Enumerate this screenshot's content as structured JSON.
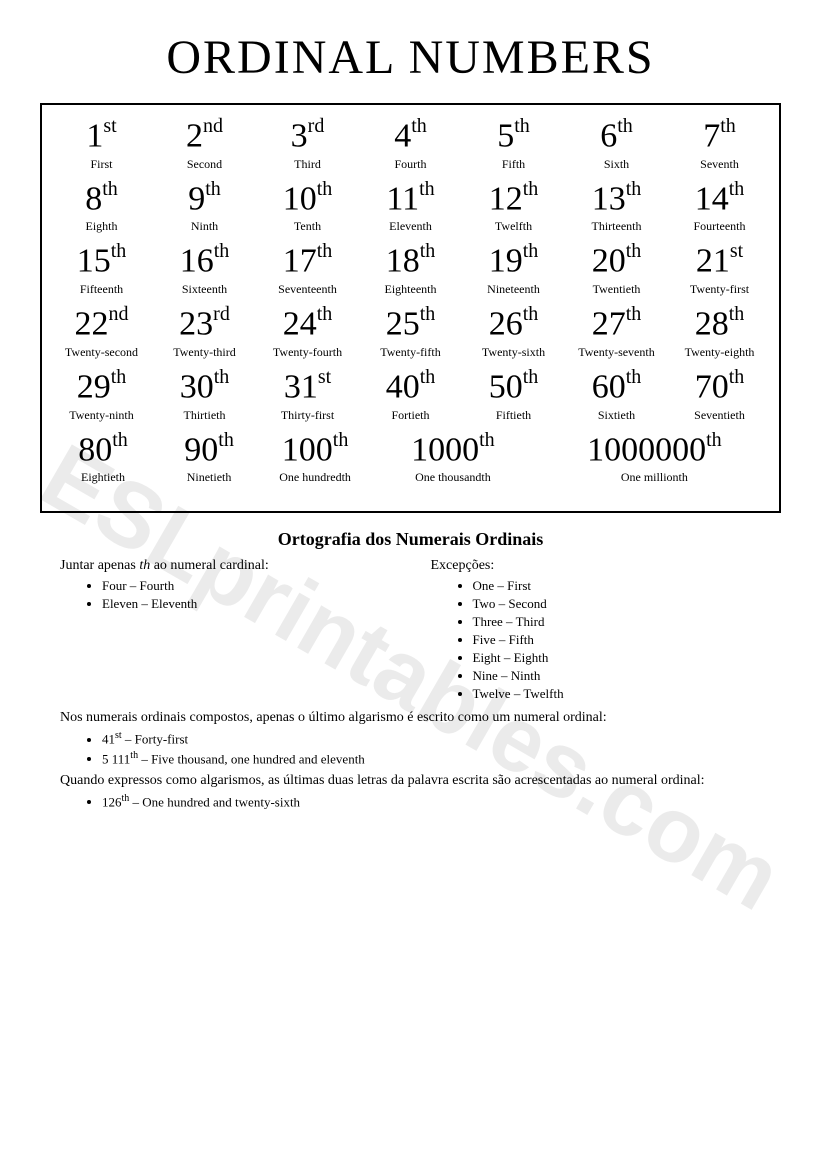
{
  "title": "ORDINAL NUMBERS",
  "watermark": "ESLprintables.com",
  "rows": [
    [
      {
        "n": "1",
        "s": "st",
        "w": "First"
      },
      {
        "n": "2",
        "s": "nd",
        "w": "Second"
      },
      {
        "n": "3",
        "s": "rd",
        "w": "Third"
      },
      {
        "n": "4",
        "s": "th",
        "w": "Fourth"
      },
      {
        "n": "5",
        "s": "th",
        "w": "Fifth"
      },
      {
        "n": "6",
        "s": "th",
        "w": "Sixth"
      },
      {
        "n": "7",
        "s": "th",
        "w": "Seventh"
      }
    ],
    [
      {
        "n": "8",
        "s": "th",
        "w": "Eighth"
      },
      {
        "n": "9",
        "s": "th",
        "w": "Ninth"
      },
      {
        "n": "10",
        "s": "th",
        "w": "Tenth"
      },
      {
        "n": "11",
        "s": "th",
        "w": "Eleventh"
      },
      {
        "n": "12",
        "s": "th",
        "w": "Twelfth"
      },
      {
        "n": "13",
        "s": "th",
        "w": "Thirteenth"
      },
      {
        "n": "14",
        "s": "th",
        "w": "Fourteenth"
      }
    ],
    [
      {
        "n": "15",
        "s": "th",
        "w": "Fifteenth"
      },
      {
        "n": "16",
        "s": "th",
        "w": "Sixteenth"
      },
      {
        "n": "17",
        "s": "th",
        "w": "Seventeenth"
      },
      {
        "n": "18",
        "s": "th",
        "w": "Eighteenth"
      },
      {
        "n": "19",
        "s": "th",
        "w": "Nineteenth"
      },
      {
        "n": "20",
        "s": "th",
        "w": "Twentieth"
      },
      {
        "n": "21",
        "s": "st",
        "w": "Twenty-first"
      }
    ],
    [
      {
        "n": "22",
        "s": "nd",
        "w": "Twenty-second"
      },
      {
        "n": "23",
        "s": "rd",
        "w": "Twenty-third"
      },
      {
        "n": "24",
        "s": "th",
        "w": "Twenty-fourth"
      },
      {
        "n": "25",
        "s": "th",
        "w": "Twenty-fifth"
      },
      {
        "n": "26",
        "s": "th",
        "w": "Twenty-sixth"
      },
      {
        "n": "27",
        "s": "th",
        "w": "Twenty-seventh"
      },
      {
        "n": "28",
        "s": "th",
        "w": "Twenty-eighth"
      }
    ],
    [
      {
        "n": "29",
        "s": "th",
        "w": "Twenty-ninth"
      },
      {
        "n": "30",
        "s": "th",
        "w": "Thirtieth"
      },
      {
        "n": "31",
        "s": "st",
        "w": "Thirty-first"
      },
      {
        "n": "40",
        "s": "th",
        "w": "Fortieth"
      },
      {
        "n": "50",
        "s": "th",
        "w": "Fiftieth"
      },
      {
        "n": "60",
        "s": "th",
        "w": "Sixtieth"
      },
      {
        "n": "70",
        "s": "th",
        "w": "Seventieth"
      }
    ]
  ],
  "lastRow": [
    {
      "n": "80",
      "s": "th",
      "w": "Eightieth",
      "cls": "cell"
    },
    {
      "n": "90",
      "s": "th",
      "w": "Ninetieth",
      "cls": "cell"
    },
    {
      "n": "100",
      "s": "th",
      "w": "One hundredth",
      "cls": "cell"
    },
    {
      "n": "1000",
      "s": "th",
      "w": "One thousandth",
      "cls": "cell-wide"
    },
    {
      "n": "1000000",
      "s": "th",
      "w": "One millionth",
      "cls": "cell-wider"
    }
  ],
  "section": {
    "heading": "Ortografia dos Numerais Ordinais",
    "left": {
      "intro": "Juntar apenas th ao numeral cardinal:",
      "items": [
        "Four – Fourth",
        "Eleven – Eleventh"
      ]
    },
    "right": {
      "intro": "Excepções:",
      "items": [
        "One – First",
        "Two – Second",
        "Three – Third",
        "Five – Fifth",
        "Eight – Eighth",
        "Nine – Ninth",
        "Twelve – Twelfth"
      ]
    },
    "para2": "Nos numerais ordinais compostos, apenas o último algarismo é escrito como um numeral ordinal:",
    "list2": [
      {
        "pre": "41",
        "sup": "st",
        "post": " – Forty-first"
      },
      {
        "pre": "5 111",
        "sup": "th",
        "post": " – Five thousand, one hundred and eleventh"
      }
    ],
    "para3": "Quando expressos como algarismos, as últimas duas letras da palavra escrita são acrescentadas ao numeral ordinal:",
    "list3": [
      {
        "pre": "126",
        "sup": "th",
        "post": " – One hundred and twenty-sixth"
      }
    ]
  }
}
